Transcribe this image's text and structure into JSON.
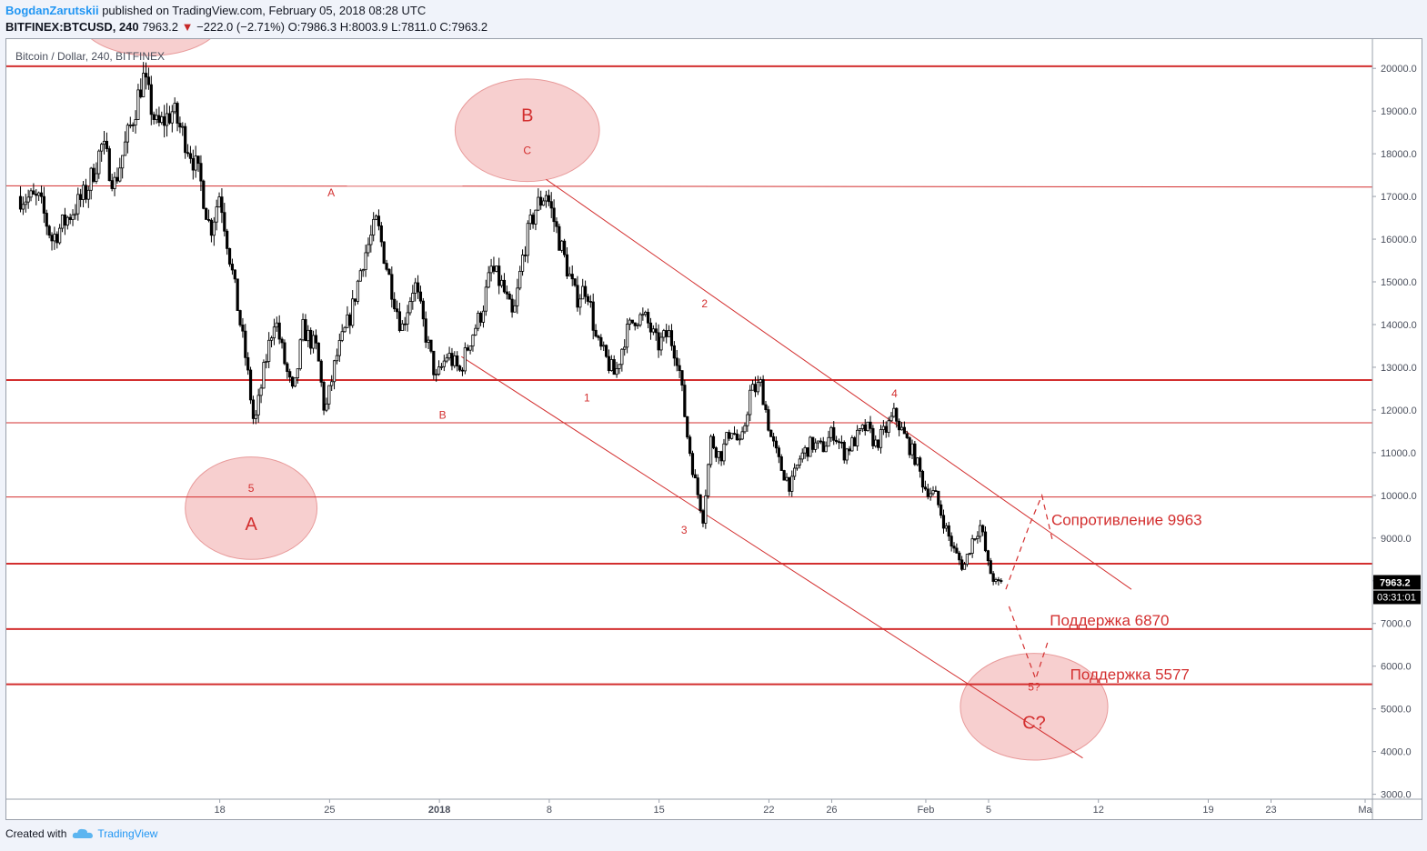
{
  "header": {
    "author": "BogdanZarutskii",
    "published": "published on TradingView.com, February 05, 2018 08:28 UTC",
    "symbol": "BITFINEX:BTCUSD, 240",
    "last": "7963.2",
    "change": "−222.0 (−2.71%)",
    "ohlc": "O:7986.3 H:8003.9 L:7811.0 C:7963.2"
  },
  "legend": "Bitcoin / Dollar, 240, BITFINEX",
  "footer": {
    "created_with": "Created with",
    "brand": "TradingView"
  },
  "colors": {
    "annotation": "#d32f2f",
    "ellipse_fill": "#f4bfbf",
    "candles": "#000000",
    "price_tag": "#000000"
  },
  "chart_data": {
    "type": "candlestick",
    "ylim": [
      2800,
      20600
    ],
    "x_range_days": [
      -27.6,
      30.2
    ],
    "y_ticks": [
      "20000.0",
      "19000.0",
      "18000.0",
      "17000.0",
      "16000.0",
      "15000.0",
      "14000.0",
      "13000.0",
      "12000.0",
      "11000.0",
      "10000.0",
      "9000.0",
      "8000.0",
      "7000.0",
      "6000.0",
      "5000.0",
      "4000.0",
      "3000.0"
    ],
    "x_ticks": [
      {
        "label": "18",
        "day": -14
      },
      {
        "label": "25",
        "day": -7
      },
      {
        "label": "2018",
        "day": 0
      },
      {
        "label": "8",
        "day": 7
      },
      {
        "label": "15",
        "day": 14
      },
      {
        "label": "22",
        "day": 21
      },
      {
        "label": "26",
        "day": 25
      },
      {
        "label": "Feb",
        "day": 31
      },
      {
        "label": "5",
        "day": 35
      },
      {
        "label": "12",
        "day": 42
      },
      {
        "label": "19",
        "day": 49
      },
      {
        "label": "23",
        "day": 53
      },
      {
        "label": "Ma",
        "day": 59
      }
    ],
    "price_path": [
      [
        -26.7,
        17000
      ],
      [
        -25.5,
        16900
      ],
      [
        -24.7,
        16000
      ],
      [
        -22.5,
        17100
      ],
      [
        -21.5,
        18200
      ],
      [
        -20.7,
        17300
      ],
      [
        -19.5,
        18900
      ],
      [
        -18.9,
        19800
      ],
      [
        -18.0,
        18600
      ],
      [
        -17.0,
        19000
      ],
      [
        -15.8,
        18000
      ],
      [
        -15.2,
        17300
      ],
      [
        -14.6,
        16200
      ],
      [
        -14.0,
        17100
      ],
      [
        -13.2,
        15200
      ],
      [
        -12.3,
        13100
      ],
      [
        -11.8,
        11600
      ],
      [
        -11.2,
        12900
      ],
      [
        -10.5,
        14200
      ],
      [
        -9.8,
        13000
      ],
      [
        -9.3,
        12300
      ],
      [
        -8.7,
        13900
      ],
      [
        -7.8,
        13400
      ],
      [
        -7.3,
        11900
      ],
      [
        -6.6,
        13200
      ],
      [
        -5.6,
        14300
      ],
      [
        -4.9,
        15500
      ],
      [
        -4.0,
        16400
      ],
      [
        -3.2,
        15100
      ],
      [
        -2.4,
        13900
      ],
      [
        -1.6,
        15000
      ],
      [
        -0.9,
        13800
      ],
      [
        -0.2,
        12700
      ],
      [
        0.5,
        13300
      ],
      [
        1.3,
        12900
      ],
      [
        2.0,
        13700
      ],
      [
        2.7,
        14300
      ],
      [
        3.3,
        15300
      ],
      [
        4.0,
        14900
      ],
      [
        4.7,
        14100
      ],
      [
        5.4,
        15800
      ],
      [
        6.1,
        16700
      ],
      [
        6.8,
        17100
      ],
      [
        7.4,
        16300
      ],
      [
        8.0,
        15500
      ],
      [
        8.7,
        14600
      ],
      [
        9.4,
        14900
      ],
      [
        10.0,
        13600
      ],
      [
        10.6,
        13200
      ],
      [
        11.2,
        12800
      ],
      [
        11.8,
        13700
      ],
      [
        12.5,
        14200
      ],
      [
        13.2,
        14100
      ],
      [
        13.9,
        13500
      ],
      [
        14.6,
        13800
      ],
      [
        15.2,
        13200
      ],
      [
        15.8,
        11400
      ],
      [
        16.3,
        10300
      ],
      [
        16.8,
        9500
      ],
      [
        17.3,
        11300
      ],
      [
        17.9,
        10900
      ],
      [
        18.6,
        11600
      ],
      [
        19.2,
        11100
      ],
      [
        19.8,
        12400
      ],
      [
        20.5,
        12600
      ],
      [
        21.1,
        11400
      ],
      [
        21.7,
        10700
      ],
      [
        22.4,
        10200
      ],
      [
        23.0,
        10900
      ],
      [
        23.7,
        11200
      ],
      [
        24.4,
        11100
      ],
      [
        25.1,
        11500
      ],
      [
        25.8,
        11000
      ],
      [
        26.5,
        11300
      ],
      [
        27.2,
        11600
      ],
      [
        27.8,
        11200
      ],
      [
        28.4,
        11500
      ],
      [
        29.0,
        11900
      ],
      [
        29.6,
        11400
      ],
      [
        30.3,
        10900
      ],
      [
        30.9,
        10200
      ],
      [
        31.6,
        10000
      ],
      [
        32.3,
        9200
      ],
      [
        32.8,
        8700
      ],
      [
        33.4,
        8300
      ],
      [
        34.0,
        9000
      ],
      [
        34.5,
        9300
      ],
      [
        35.0,
        8300
      ],
      [
        35.5,
        7900
      ],
      [
        35.9,
        7963
      ]
    ],
    "horizontal_levels": [
      {
        "price": 20050,
        "style": "thick"
      },
      {
        "price": 17250,
        "style": "thin",
        "tilt": -30
      },
      {
        "price": 12700,
        "style": "thick"
      },
      {
        "price": 11700,
        "style": "thin"
      },
      {
        "price": 9963,
        "style": "thin"
      },
      {
        "price": 8400,
        "style": "thick"
      },
      {
        "price": 6870,
        "style": "thick"
      },
      {
        "price": 5577,
        "style": "thick"
      }
    ],
    "trend_lines": [
      {
        "from": [
          6.8,
          17400
        ],
        "to": [
          44.1,
          7800
        ]
      },
      {
        "from": [
          1.4,
          13250
        ],
        "to": [
          41.0,
          3850
        ]
      }
    ],
    "projection": [
      [
        36.1,
        7800
      ],
      [
        37.6,
        9300
      ],
      [
        38.4,
        10000
      ],
      [
        39.1,
        8900
      ]
    ],
    "projection2": [
      [
        36.3,
        7400
      ],
      [
        37.2,
        6500
      ],
      [
        38.0,
        5700
      ],
      [
        38.8,
        6600
      ]
    ],
    "ellipses": [
      {
        "label": "A",
        "sub": "5",
        "day": -12,
        "price": 9700,
        "rx_days": 4.2,
        "ry_price": 1200
      },
      {
        "label": "B",
        "sub": "C",
        "day": 5.6,
        "price": 18550,
        "rx_days": 4.6,
        "ry_price": 1200
      },
      {
        "label": "C?",
        "sub": "5?",
        "day": 37.9,
        "price": 5050,
        "rx_days": 4.7,
        "ry_price": 1250
      },
      {
        "label": "",
        "sub": "",
        "day": -18.4,
        "price": 21200,
        "rx_days": 4.6,
        "ry_price": 900
      }
    ],
    "wave_labels": [
      {
        "text": "A",
        "day": -6.9,
        "price": 17000
      },
      {
        "text": "B",
        "day": 0.2,
        "price": 11800
      },
      {
        "text": "1",
        "day": 9.4,
        "price": 12200
      },
      {
        "text": "2",
        "day": 16.9,
        "price": 14400
      },
      {
        "text": "3",
        "day": 15.6,
        "price": 9100
      },
      {
        "text": "4",
        "day": 29.0,
        "price": 12300
      }
    ],
    "text_annotations": [
      {
        "text": "Сопротивление 9963",
        "day": 39.0,
        "price": 9300
      },
      {
        "text": "Поддержка 6870",
        "day": 38.9,
        "price": 6950
      },
      {
        "text": "Поддержка 5577",
        "day": 40.2,
        "price": 5690
      }
    ],
    "last_price_label": "7963.2",
    "countdown_label": "03:31:01"
  }
}
